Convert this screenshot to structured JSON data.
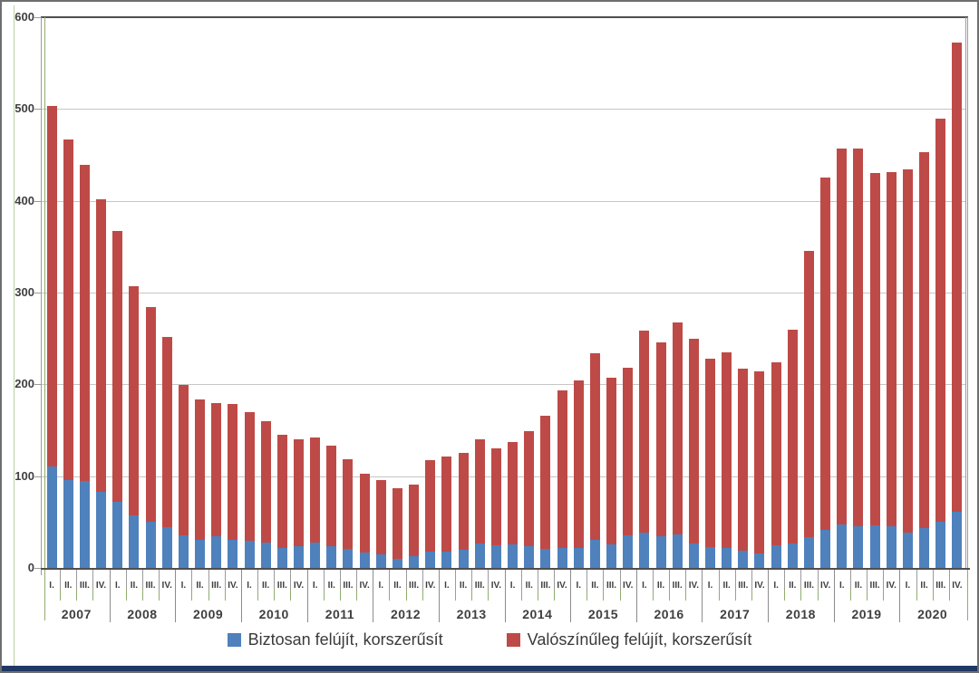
{
  "chart_data": {
    "type": "bar",
    "stacked": true,
    "title": "",
    "xlabel": "",
    "ylabel": "",
    "ylim": [
      0,
      600
    ],
    "yticks": [
      0,
      100,
      200,
      300,
      400,
      500,
      600
    ],
    "grid": "horizontal",
    "legend_position": "bottom",
    "years": [
      "2007",
      "2008",
      "2009",
      "2010",
      "2011",
      "2012",
      "2013",
      "2014",
      "2015",
      "2016",
      "2017",
      "2018",
      "2019",
      "2020"
    ],
    "quarter_labels": [
      "I.",
      "II.",
      "III.",
      "IV."
    ],
    "series": [
      {
        "name": "Biztosan felújít, korszerűsít",
        "color": "#4f81bd",
        "values": [
          111,
          96,
          95,
          83,
          72,
          57,
          50,
          44,
          36,
          31,
          35,
          31,
          30,
          28,
          22,
          24,
          28,
          24,
          21,
          17,
          15,
          10,
          13,
          18,
          18,
          20,
          27,
          25,
          26,
          24,
          21,
          22,
          22,
          31,
          26,
          36,
          38,
          35,
          37,
          27,
          23,
          22,
          19,
          16,
          25,
          27,
          34,
          41,
          47,
          45,
          46,
          45,
          38,
          43,
          50,
          61
        ]
      },
      {
        "name": "Valószínűleg felújít, korszerűsít",
        "color": "#be4a47",
        "values": [
          392,
          371,
          344,
          319,
          295,
          250,
          234,
          208,
          163,
          153,
          145,
          148,
          140,
          132,
          123,
          116,
          114,
          109,
          97,
          86,
          81,
          77,
          78,
          99,
          103,
          105,
          113,
          105,
          111,
          125,
          145,
          171,
          182,
          203,
          181,
          182,
          221,
          211,
          230,
          223,
          205,
          213,
          198,
          198,
          199,
          233,
          311,
          384,
          410,
          412,
          384,
          386,
          396,
          410,
          439,
          511
        ]
      }
    ],
    "stack_totals": [
      503,
      467,
      439,
      402,
      367,
      307,
      284,
      252,
      199,
      184,
      180,
      179,
      170,
      160,
      145,
      140,
      142,
      133,
      118,
      103,
      96,
      87,
      91,
      117,
      121,
      125,
      140,
      130,
      137,
      149,
      166,
      193,
      204,
      234,
      207,
      218,
      259,
      246,
      267,
      250,
      228,
      235,
      217,
      214,
      224,
      260,
      345,
      425,
      457,
      457,
      430,
      431,
      434,
      453,
      489,
      572
    ]
  },
  "colors": {
    "background": "#ffffff",
    "grid_light": "#c6c6c6",
    "axis_dark": "#4f4f4f",
    "axis_gray": "#9b9b9b",
    "green_guide": "#8fae6d",
    "green_faint": "#b9cfa4",
    "text": "#3f3f3f",
    "bottom_strip": "#1f3864"
  }
}
